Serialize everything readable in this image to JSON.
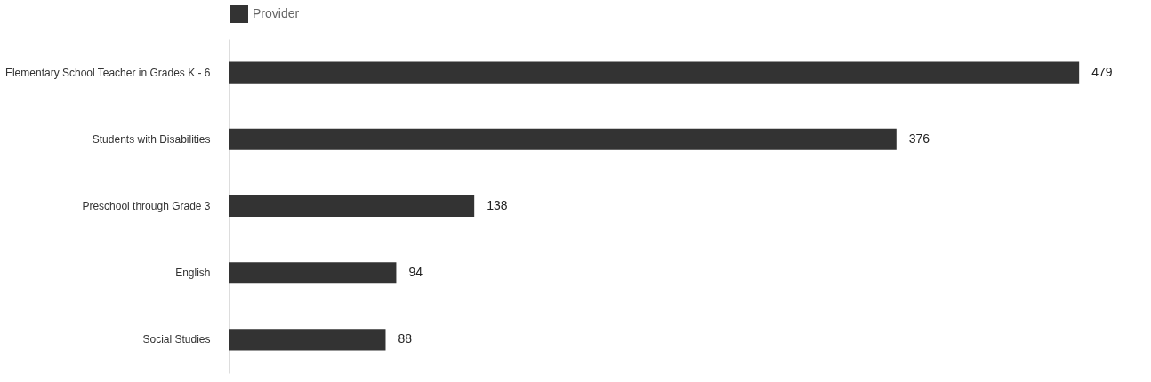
{
  "chart_data": {
    "type": "bar",
    "orientation": "horizontal",
    "categories": [
      "Elementary School Teacher in Grades K - 6",
      "Students with Disabilities",
      "Preschool through Grade 3",
      "English",
      "Social Studies"
    ],
    "series": [
      {
        "name": "Provider",
        "color": "#333333",
        "values": [
          479,
          376,
          138,
          94,
          88
        ]
      }
    ],
    "xlim": [
      0,
      510
    ],
    "tick_labels": "y",
    "data_labels": true,
    "legend": "top",
    "grid": false
  }
}
